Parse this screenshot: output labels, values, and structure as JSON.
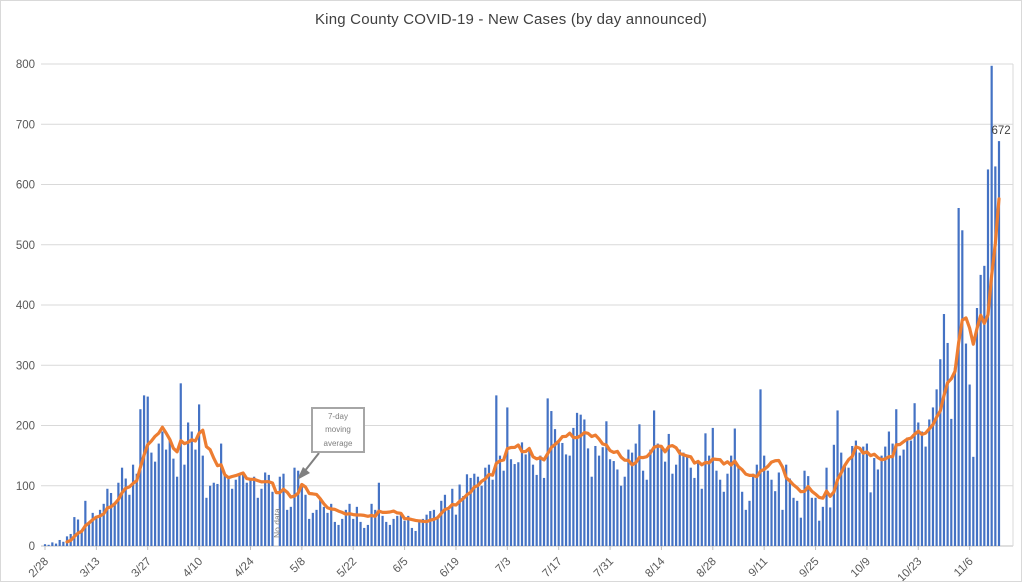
{
  "window": {
    "title": "King County COVID-19 - New Cases (by day announced)"
  },
  "chart_data": {
    "type": "bar",
    "title": "King County COVID-19 - New Cases (by day announced)",
    "xlabel": "",
    "ylabel": "",
    "ylim": [
      0,
      800
    ],
    "ytick_labels": [
      "0",
      "100",
      "200",
      "300",
      "400",
      "500",
      "600",
      "700",
      "800"
    ],
    "ytick_values": [
      0,
      100,
      200,
      300,
      400,
      500,
      600,
      700,
      800
    ],
    "xtick_labels": [
      "2/28",
      "3/13",
      "3/27",
      "4/10",
      "4/24",
      "5/8",
      "5/22",
      "6/5",
      "6/19",
      "7/3",
      "7/17",
      "7/31",
      "8/14",
      "8/28",
      "9/11",
      "9/25",
      "10/9",
      "10/23",
      "11/6"
    ],
    "xtick_every_days": 14,
    "grid": true,
    "legend": "none",
    "series": [
      {
        "name": "New cases (by day announced)",
        "type": "bar",
        "color": "#4472C4",
        "values": [
          3,
          2,
          6,
          4,
          10,
          7,
          16,
          20,
          48,
          44,
          26,
          75,
          38,
          55,
          50,
          60,
          70,
          95,
          88,
          72,
          105,
          130,
          112,
          85,
          135,
          120,
          227,
          250,
          248,
          155,
          140,
          170,
          190,
          160,
          175,
          145,
          115,
          270,
          135,
          205,
          190,
          160,
          235,
          150,
          80,
          100,
          105,
          103,
          170,
          120,
          115,
          95,
          110,
          120,
          118,
          105,
          112,
          115,
          80,
          95,
          122,
          118,
          90,
          0,
          115,
          120,
          60,
          65,
          130,
          125,
          100,
          85,
          45,
          55,
          60,
          80,
          65,
          55,
          70,
          40,
          35,
          45,
          60,
          70,
          45,
          65,
          40,
          30,
          35,
          70,
          60,
          105,
          50,
          40,
          35,
          45,
          50,
          55,
          42,
          50,
          30,
          25,
          40,
          45,
          52,
          58,
          60,
          49,
          75,
          85,
          60,
          95,
          52,
          102,
          83,
          119,
          113,
          120,
          115,
          100,
          130,
          135,
          110,
          250,
          150,
          125,
          230,
          144,
          136,
          139,
          172,
          152,
          160,
          135,
          118,
          150,
          113,
          245,
          224,
          194,
          174,
          171,
          152,
          150,
          196,
          221,
          218,
          210,
          162,
          115,
          166,
          150,
          164,
          207,
          144,
          141,
          127,
          100,
          115,
          160,
          155,
          170,
          202,
          125,
          110,
          160,
          225,
          170,
          165,
          140,
          186,
          120,
          135,
          160,
          155,
          150,
          130,
          113,
          140,
          95,
          187,
          150,
          196,
          125,
          110,
          90,
          120,
          150,
          195,
          130,
          90,
          60,
          75,
          120,
          135,
          260,
          150,
          125,
          110,
          91,
          122,
          60,
          135,
          112,
          80,
          75,
          47,
          125,
          116,
          80,
          80,
          42,
          65,
          130,
          64,
          168,
          225,
          155,
          132,
          130,
          166,
          175,
          155,
          165,
          170,
          89,
          146,
          127,
          150,
          165,
          190,
          170,
          227,
          150,
          160,
          180,
          175,
          237,
          205,
          190,
          165,
          210,
          230,
          260,
          310,
          385,
          337,
          211,
          296,
          561,
          524,
          336,
          268,
          148,
          395,
          450,
          465,
          625,
          797,
          630,
          672
        ]
      },
      {
        "name": "7-day moving average",
        "type": "line",
        "color": "#ED7D31",
        "derivation": "trailing 7-day mean of the bar series (drawn from day 7 onward)"
      }
    ],
    "annotations": [
      {
        "id": "callout",
        "text_lines": [
          "7-day",
          "moving",
          "average"
        ],
        "text": "7-day moving average"
      },
      {
        "id": "no-data",
        "text": "No data",
        "at_value_index": 63
      },
      {
        "id": "last-point-label",
        "text": "672",
        "at_value_index": 260
      }
    ]
  },
  "colors": {
    "bar": "#4472C4",
    "line": "#ED7D31",
    "grid": "#d9d9d9",
    "axis_line": "#bfbfbf",
    "axis_text": "#595959",
    "title_text": "#404040",
    "data_label_text": "#404040",
    "annotation_gray": "#808080",
    "callout_border": "#a6a6a6"
  }
}
